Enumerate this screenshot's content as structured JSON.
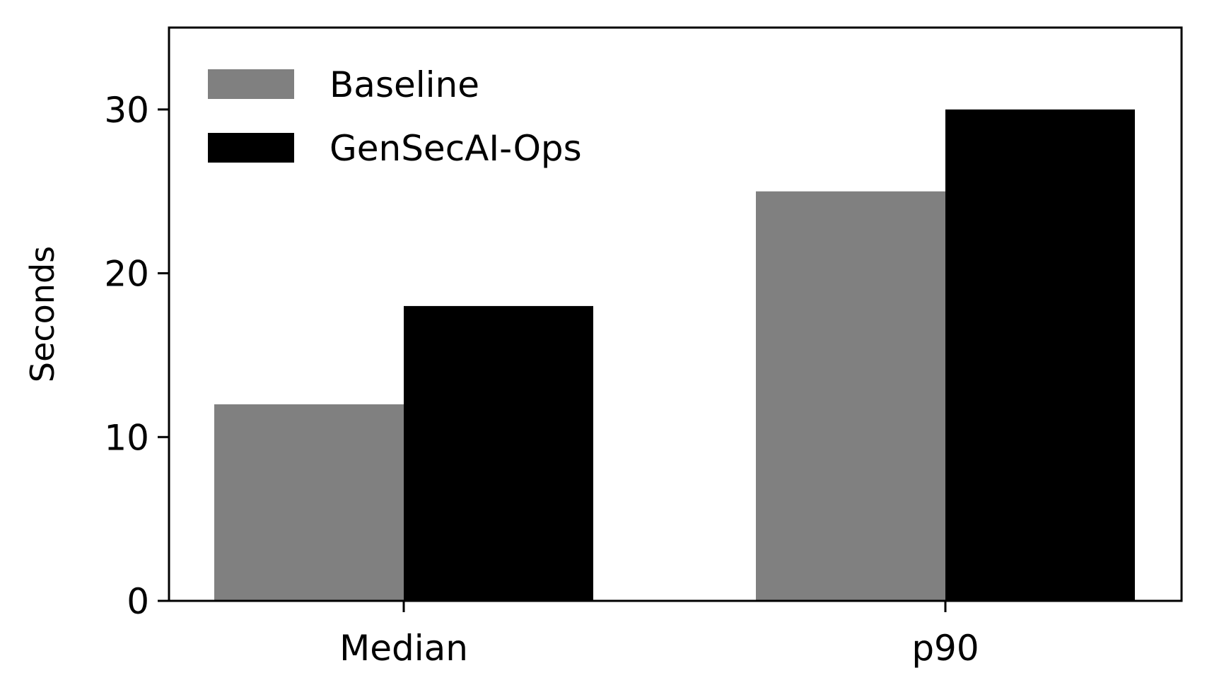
{
  "chart_data": {
    "type": "bar",
    "categories": [
      "Median",
      "p90"
    ],
    "series": [
      {
        "name": "Baseline",
        "values": [
          12,
          25
        ],
        "color": "#808080"
      },
      {
        "name": "GenSecAI-Ops",
        "values": [
          18,
          30
        ],
        "color": "#000000"
      }
    ],
    "title": "",
    "xlabel": "",
    "ylabel": "Seconds",
    "ylim": [
      0,
      35
    ],
    "yticks": [
      0,
      10,
      20,
      30
    ],
    "grid": false,
    "legend_position": "top-left"
  }
}
